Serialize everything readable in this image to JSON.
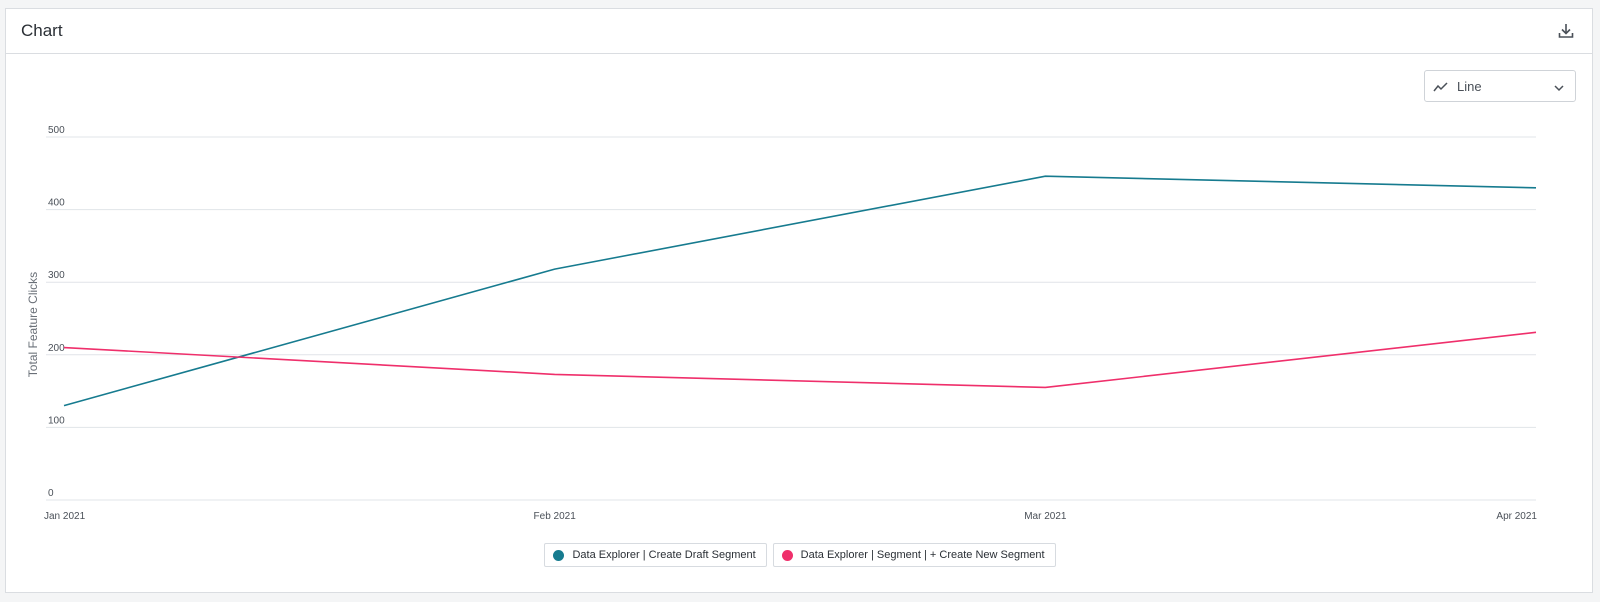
{
  "card": {
    "title": "Chart",
    "download_icon": "download-icon"
  },
  "chart_type_select": {
    "icon": "line-chart-icon",
    "label": "Line",
    "chevron": "chevron-down-icon"
  },
  "chart_data": {
    "type": "line",
    "x": [
      "Jan 2021",
      "Feb 2021",
      "Mar 2021",
      "Apr 2021"
    ],
    "series": [
      {
        "name": "Data Explorer | Create Draft Segment",
        "color": "#167b8f",
        "values": [
          130,
          318,
          446,
          430
        ]
      },
      {
        "name": "Data Explorer | Segment | + Create New Segment",
        "color": "#ef2f6b",
        "values": [
          210,
          173,
          155,
          231
        ]
      }
    ],
    "yticks": [
      "0",
      "100",
      "200",
      "300",
      "400",
      "500"
    ],
    "ylim": [
      0,
      500
    ],
    "ylabel": "Total Feature Clicks",
    "xlabel": "",
    "grid": true,
    "legend_position": "bottom-center"
  }
}
